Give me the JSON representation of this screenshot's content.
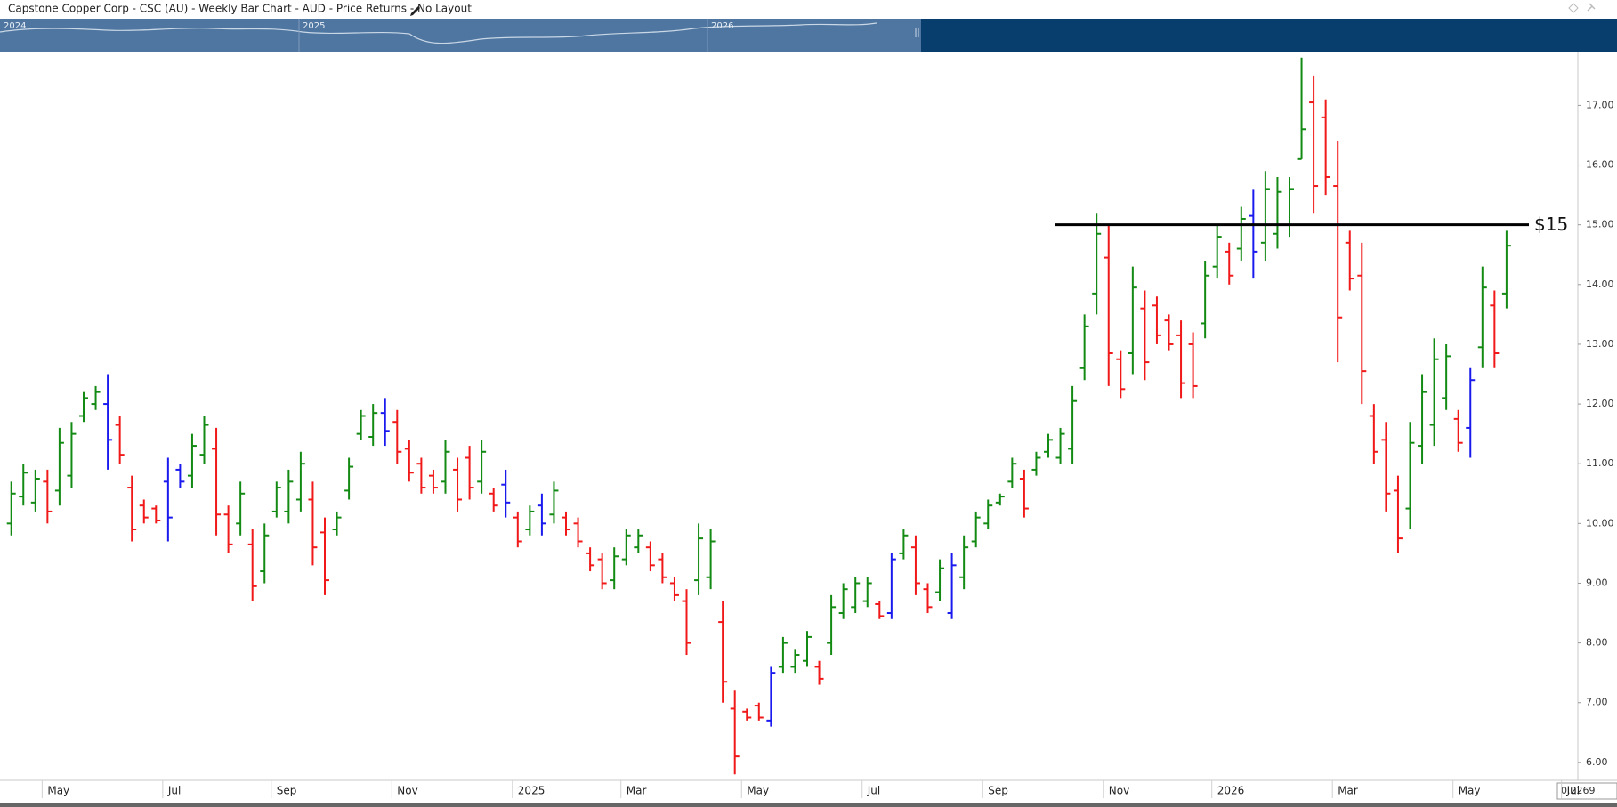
{
  "chart_data": {
    "type": "ohlc",
    "title": "Capstone Copper Corp - CSC (AU) - Weekly Bar Chart - AUD - Price Returns - No Layout",
    "navigator_labels": [
      "2024",
      "2025",
      "2026"
    ],
    "corner_label": "0.2269",
    "ylim": [
      5.7,
      17.9
    ],
    "yticks": [
      {
        "value": 6,
        "label": "6.00"
      },
      {
        "value": 7,
        "label": "7.00"
      },
      {
        "value": 8,
        "label": "8.00"
      },
      {
        "value": 9,
        "label": "9.00"
      },
      {
        "value": 10,
        "label": "10.00"
      },
      {
        "value": 11,
        "label": "11.00"
      },
      {
        "value": 12,
        "label": "12.00"
      },
      {
        "value": 13,
        "label": "13.00"
      },
      {
        "value": 14,
        "label": "14.00"
      },
      {
        "value": 15,
        "label": "15.00"
      },
      {
        "value": 16,
        "label": "16.00"
      },
      {
        "value": 17,
        "label": "17.00"
      }
    ],
    "categories": [
      null,
      null,
      null,
      "May",
      null,
      null,
      null,
      null,
      null,
      null,
      null,
      null,
      null,
      "Jul",
      null,
      null,
      null,
      null,
      null,
      null,
      null,
      null,
      "Sep",
      null,
      null,
      null,
      null,
      null,
      null,
      null,
      null,
      null,
      "Nov",
      null,
      null,
      null,
      null,
      null,
      null,
      null,
      null,
      null,
      "2025",
      null,
      null,
      null,
      null,
      null,
      null,
      null,
      null,
      "Mar",
      null,
      null,
      null,
      null,
      null,
      null,
      null,
      null,
      null,
      "May",
      null,
      null,
      null,
      null,
      null,
      null,
      null,
      null,
      null,
      "Jul",
      null,
      null,
      null,
      null,
      null,
      null,
      null,
      null,
      null,
      "Sep",
      null,
      null,
      null,
      null,
      null,
      null,
      null,
      null,
      null,
      "Nov",
      null,
      null,
      null,
      null,
      null,
      null,
      null,
      null,
      "2026",
      null,
      null,
      null,
      null,
      null,
      null,
      null,
      null,
      null,
      "Mar",
      null,
      null,
      null,
      null,
      null,
      null,
      null,
      null,
      null,
      "May",
      null,
      null,
      null,
      null,
      null,
      null,
      null,
      null,
      "Jul"
    ],
    "bars": [
      {
        "open": 10.0,
        "high": 10.7,
        "low": 9.8,
        "close": 10.5,
        "color": "#138a13"
      },
      {
        "open": 10.45,
        "high": 11.0,
        "low": 10.3,
        "close": 10.85,
        "color": "#138a13"
      },
      {
        "open": 10.35,
        "high": 10.9,
        "low": 10.2,
        "close": 10.75,
        "color": "#138a13"
      },
      {
        "open": 10.7,
        "high": 10.9,
        "low": 10.0,
        "close": 10.2,
        "color": "#f01818"
      },
      {
        "open": 10.55,
        "high": 11.6,
        "low": 10.3,
        "close": 11.35,
        "color": "#138a13"
      },
      {
        "open": 10.8,
        "high": 11.7,
        "low": 10.6,
        "close": 11.5,
        "color": "#138a13"
      },
      {
        "open": 11.8,
        "high": 12.2,
        "low": 11.7,
        "close": 12.1,
        "color": "#138a13"
      },
      {
        "open": 12.0,
        "high": 12.3,
        "low": 11.9,
        "close": 12.2,
        "color": "#138a13"
      },
      {
        "open": 12.0,
        "high": 12.5,
        "low": 10.9,
        "close": 11.4,
        "color": "#1a1aee"
      },
      {
        "open": 11.65,
        "high": 11.8,
        "low": 11.0,
        "close": 11.15,
        "color": "#f01818"
      },
      {
        "open": 10.6,
        "high": 10.8,
        "low": 9.7,
        "close": 9.9,
        "color": "#f01818"
      },
      {
        "open": 10.3,
        "high": 10.4,
        "low": 10.0,
        "close": 10.1,
        "color": "#f01818"
      },
      {
        "open": 10.25,
        "high": 10.3,
        "low": 10.0,
        "close": 10.05,
        "color": "#f01818"
      },
      {
        "open": 10.7,
        "high": 11.1,
        "low": 9.7,
        "close": 10.1,
        "color": "#1a1aee"
      },
      {
        "open": 10.9,
        "high": 11.0,
        "low": 10.6,
        "close": 10.7,
        "color": "#1a1aee"
      },
      {
        "open": 10.8,
        "high": 11.5,
        "low": 10.6,
        "close": 11.3,
        "color": "#138a13"
      },
      {
        "open": 11.15,
        "high": 11.8,
        "low": 11.0,
        "close": 11.65,
        "color": "#138a13"
      },
      {
        "open": 11.25,
        "high": 11.6,
        "low": 9.8,
        "close": 10.15,
        "color": "#f01818"
      },
      {
        "open": 10.15,
        "high": 10.3,
        "low": 9.5,
        "close": 9.65,
        "color": "#f01818"
      },
      {
        "open": 10.0,
        "high": 10.7,
        "low": 9.8,
        "close": 10.5,
        "color": "#138a13"
      },
      {
        "open": 9.65,
        "high": 9.9,
        "low": 8.7,
        "close": 8.95,
        "color": "#f01818"
      },
      {
        "open": 9.2,
        "high": 10.0,
        "low": 9.0,
        "close": 9.8,
        "color": "#138a13"
      },
      {
        "open": 10.2,
        "high": 10.7,
        "low": 10.1,
        "close": 10.6,
        "color": "#138a13"
      },
      {
        "open": 10.2,
        "high": 10.9,
        "low": 10.0,
        "close": 10.7,
        "color": "#138a13"
      },
      {
        "open": 10.4,
        "high": 11.2,
        "low": 10.2,
        "close": 11.0,
        "color": "#138a13"
      },
      {
        "open": 10.4,
        "high": 10.7,
        "low": 9.3,
        "close": 9.6,
        "color": "#f01818"
      },
      {
        "open": 9.85,
        "high": 10.1,
        "low": 8.8,
        "close": 9.05,
        "color": "#f01818"
      },
      {
        "open": 9.9,
        "high": 10.2,
        "low": 9.8,
        "close": 10.1,
        "color": "#138a13"
      },
      {
        "open": 10.55,
        "high": 11.1,
        "low": 10.4,
        "close": 10.95,
        "color": "#138a13"
      },
      {
        "open": 11.5,
        "high": 11.9,
        "low": 11.4,
        "close": 11.8,
        "color": "#138a13"
      },
      {
        "open": 11.45,
        "high": 12.0,
        "low": 11.3,
        "close": 11.85,
        "color": "#138a13"
      },
      {
        "open": 11.85,
        "high": 12.1,
        "low": 11.3,
        "close": 11.55,
        "color": "#1a1aee"
      },
      {
        "open": 11.7,
        "high": 11.9,
        "low": 11.0,
        "close": 11.2,
        "color": "#f01818"
      },
      {
        "open": 11.25,
        "high": 11.4,
        "low": 10.7,
        "close": 10.85,
        "color": "#f01818"
      },
      {
        "open": 11.0,
        "high": 11.1,
        "low": 10.5,
        "close": 10.6,
        "color": "#f01818"
      },
      {
        "open": 10.8,
        "high": 10.9,
        "low": 10.5,
        "close": 10.6,
        "color": "#f01818"
      },
      {
        "open": 10.7,
        "high": 11.4,
        "low": 10.5,
        "close": 11.2,
        "color": "#138a13"
      },
      {
        "open": 10.9,
        "high": 11.1,
        "low": 10.2,
        "close": 10.4,
        "color": "#f01818"
      },
      {
        "open": 11.1,
        "high": 11.3,
        "low": 10.4,
        "close": 10.6,
        "color": "#f01818"
      },
      {
        "open": 10.7,
        "high": 11.4,
        "low": 10.5,
        "close": 11.2,
        "color": "#138a13"
      },
      {
        "open": 10.5,
        "high": 10.6,
        "low": 10.2,
        "close": 10.3,
        "color": "#f01818"
      },
      {
        "open": 10.65,
        "high": 10.9,
        "low": 10.1,
        "close": 10.35,
        "color": "#1a1aee"
      },
      {
        "open": 10.1,
        "high": 10.2,
        "low": 9.6,
        "close": 9.7,
        "color": "#f01818"
      },
      {
        "open": 9.9,
        "high": 10.3,
        "low": 9.8,
        "close": 10.2,
        "color": "#138a13"
      },
      {
        "open": 10.3,
        "high": 10.5,
        "low": 9.8,
        "close": 10.0,
        "color": "#1a1aee"
      },
      {
        "open": 10.15,
        "high": 10.7,
        "low": 10.0,
        "close": 10.55,
        "color": "#138a13"
      },
      {
        "open": 10.1,
        "high": 10.2,
        "low": 9.8,
        "close": 9.9,
        "color": "#f01818"
      },
      {
        "open": 10.0,
        "high": 10.1,
        "low": 9.6,
        "close": 9.7,
        "color": "#f01818"
      },
      {
        "open": 9.5,
        "high": 9.6,
        "low": 9.2,
        "close": 9.3,
        "color": "#f01818"
      },
      {
        "open": 9.4,
        "high": 9.5,
        "low": 8.9,
        "close": 9.0,
        "color": "#f01818"
      },
      {
        "open": 9.05,
        "high": 9.6,
        "low": 8.9,
        "close": 9.45,
        "color": "#138a13"
      },
      {
        "open": 9.4,
        "high": 9.9,
        "low": 9.3,
        "close": 9.8,
        "color": "#138a13"
      },
      {
        "open": 9.6,
        "high": 9.9,
        "low": 9.5,
        "close": 9.8,
        "color": "#138a13"
      },
      {
        "open": 9.6,
        "high": 9.7,
        "low": 9.2,
        "close": 9.3,
        "color": "#f01818"
      },
      {
        "open": 9.4,
        "high": 9.5,
        "low": 9.0,
        "close": 9.1,
        "color": "#f01818"
      },
      {
        "open": 9.0,
        "high": 9.1,
        "low": 8.7,
        "close": 8.8,
        "color": "#f01818"
      },
      {
        "open": 8.7,
        "high": 8.9,
        "low": 7.8,
        "close": 8.0,
        "color": "#f01818"
      },
      {
        "open": 9.05,
        "high": 10.0,
        "low": 8.8,
        "close": 9.75,
        "color": "#138a13"
      },
      {
        "open": 9.1,
        "high": 9.9,
        "low": 8.9,
        "close": 9.7,
        "color": "#138a13"
      },
      {
        "open": 8.35,
        "high": 8.7,
        "low": 7.0,
        "close": 7.35,
        "color": "#f01818"
      },
      {
        "open": 6.9,
        "high": 7.2,
        "low": 5.8,
        "close": 6.1,
        "color": "#f01818"
      },
      {
        "open": 6.85,
        "high": 6.9,
        "low": 6.7,
        "close": 6.75,
        "color": "#f01818"
      },
      {
        "open": 6.95,
        "high": 7.0,
        "low": 6.7,
        "close": 6.75,
        "color": "#f01818"
      },
      {
        "open": 6.7,
        "high": 7.6,
        "low": 6.6,
        "close": 7.5,
        "color": "#1a1aee"
      },
      {
        "open": 7.6,
        "high": 8.1,
        "low": 7.5,
        "close": 8.0,
        "color": "#138a13"
      },
      {
        "open": 7.6,
        "high": 7.9,
        "low": 7.5,
        "close": 7.8,
        "color": "#138a13"
      },
      {
        "open": 7.7,
        "high": 8.2,
        "low": 7.6,
        "close": 8.1,
        "color": "#138a13"
      },
      {
        "open": 7.6,
        "high": 7.7,
        "low": 7.3,
        "close": 7.4,
        "color": "#f01818"
      },
      {
        "open": 8.0,
        "high": 8.8,
        "low": 7.8,
        "close": 8.6,
        "color": "#138a13"
      },
      {
        "open": 8.5,
        "high": 9.0,
        "low": 8.4,
        "close": 8.9,
        "color": "#138a13"
      },
      {
        "open": 8.6,
        "high": 9.1,
        "low": 8.5,
        "close": 9.0,
        "color": "#138a13"
      },
      {
        "open": 8.7,
        "high": 9.1,
        "low": 8.6,
        "close": 9.0,
        "color": "#138a13"
      },
      {
        "open": 8.65,
        "high": 8.7,
        "low": 8.4,
        "close": 8.45,
        "color": "#f01818"
      },
      {
        "open": 8.5,
        "high": 9.5,
        "low": 8.4,
        "close": 9.4,
        "color": "#1a1aee"
      },
      {
        "open": 9.5,
        "high": 9.9,
        "low": 9.4,
        "close": 9.8,
        "color": "#138a13"
      },
      {
        "open": 9.6,
        "high": 9.8,
        "low": 8.8,
        "close": 9.0,
        "color": "#f01818"
      },
      {
        "open": 8.9,
        "high": 9.0,
        "low": 8.5,
        "close": 8.6,
        "color": "#f01818"
      },
      {
        "open": 8.85,
        "high": 9.4,
        "low": 8.7,
        "close": 9.25,
        "color": "#138a13"
      },
      {
        "open": 8.5,
        "high": 9.5,
        "low": 8.4,
        "close": 9.3,
        "color": "#1a1aee"
      },
      {
        "open": 9.1,
        "high": 9.8,
        "low": 8.9,
        "close": 9.6,
        "color": "#138a13"
      },
      {
        "open": 9.7,
        "high": 10.2,
        "low": 9.6,
        "close": 10.1,
        "color": "#138a13"
      },
      {
        "open": 10.0,
        "high": 10.4,
        "low": 9.9,
        "close": 10.3,
        "color": "#138a13"
      },
      {
        "open": 10.35,
        "high": 10.5,
        "low": 10.3,
        "close": 10.45,
        "color": "#138a13"
      },
      {
        "open": 10.7,
        "high": 11.1,
        "low": 10.6,
        "close": 11.0,
        "color": "#138a13"
      },
      {
        "open": 10.75,
        "high": 10.9,
        "low": 10.1,
        "close": 10.25,
        "color": "#f01818"
      },
      {
        "open": 10.9,
        "high": 11.2,
        "low": 10.8,
        "close": 11.1,
        "color": "#138a13"
      },
      {
        "open": 11.2,
        "high": 11.5,
        "low": 11.1,
        "close": 11.4,
        "color": "#138a13"
      },
      {
        "open": 11.1,
        "high": 11.6,
        "low": 11.0,
        "close": 11.5,
        "color": "#138a13"
      },
      {
        "open": 11.25,
        "high": 12.3,
        "low": 11.0,
        "close": 12.05,
        "color": "#138a13"
      },
      {
        "open": 12.6,
        "high": 13.5,
        "low": 12.4,
        "close": 13.3,
        "color": "#138a13"
      },
      {
        "open": 13.85,
        "high": 15.2,
        "low": 13.5,
        "close": 14.85,
        "color": "#138a13"
      },
      {
        "open": 14.45,
        "high": 15.0,
        "low": 12.3,
        "close": 12.85,
        "color": "#f01818"
      },
      {
        "open": 12.75,
        "high": 12.9,
        "low": 12.1,
        "close": 12.25,
        "color": "#f01818"
      },
      {
        "open": 12.85,
        "high": 14.3,
        "low": 12.5,
        "close": 13.95,
        "color": "#138a13"
      },
      {
        "open": 13.6,
        "high": 13.9,
        "low": 12.4,
        "close": 12.7,
        "color": "#f01818"
      },
      {
        "open": 13.65,
        "high": 13.8,
        "low": 13.0,
        "close": 13.15,
        "color": "#f01818"
      },
      {
        "open": 13.4,
        "high": 13.5,
        "low": 12.9,
        "close": 13.0,
        "color": "#f01818"
      },
      {
        "open": 13.15,
        "high": 13.4,
        "low": 12.1,
        "close": 12.35,
        "color": "#f01818"
      },
      {
        "open": 13.0,
        "high": 13.2,
        "low": 12.1,
        "close": 12.3,
        "color": "#f01818"
      },
      {
        "open": 13.35,
        "high": 14.4,
        "low": 13.1,
        "close": 14.15,
        "color": "#138a13"
      },
      {
        "open": 14.3,
        "high": 15.0,
        "low": 14.1,
        "close": 14.8,
        "color": "#138a13"
      },
      {
        "open": 14.55,
        "high": 14.7,
        "low": 14.0,
        "close": 14.15,
        "color": "#f01818"
      },
      {
        "open": 14.6,
        "high": 15.3,
        "low": 14.4,
        "close": 15.1,
        "color": "#138a13"
      },
      {
        "open": 15.15,
        "high": 15.6,
        "low": 14.1,
        "close": 14.55,
        "color": "#1a1aee"
      },
      {
        "open": 14.7,
        "high": 15.9,
        "low": 14.4,
        "close": 15.6,
        "color": "#138a13"
      },
      {
        "open": 14.85,
        "high": 15.8,
        "low": 14.6,
        "close": 15.55,
        "color": "#138a13"
      },
      {
        "open": 15.0,
        "high": 15.8,
        "low": 14.8,
        "close": 15.6,
        "color": "#138a13"
      },
      {
        "open": 16.1,
        "high": 17.8,
        "low": 16.1,
        "close": 16.6,
        "color": "#138a13"
      },
      {
        "open": 17.05,
        "high": 17.5,
        "low": 15.2,
        "close": 15.65,
        "color": "#f01818"
      },
      {
        "open": 16.8,
        "high": 17.1,
        "low": 15.5,
        "close": 15.8,
        "color": "#f01818"
      },
      {
        "open": 15.65,
        "high": 16.4,
        "low": 12.7,
        "close": 13.45,
        "color": "#f01818"
      },
      {
        "open": 14.7,
        "high": 14.9,
        "low": 13.9,
        "close": 14.1,
        "color": "#f01818"
      },
      {
        "open": 14.15,
        "high": 14.7,
        "low": 12.0,
        "close": 12.55,
        "color": "#f01818"
      },
      {
        "open": 11.8,
        "high": 12.0,
        "low": 11.0,
        "close": 11.2,
        "color": "#f01818"
      },
      {
        "open": 11.4,
        "high": 11.7,
        "low": 10.2,
        "close": 10.5,
        "color": "#f01818"
      },
      {
        "open": 10.55,
        "high": 10.8,
        "low": 9.5,
        "close": 9.75,
        "color": "#f01818"
      },
      {
        "open": 10.25,
        "high": 11.7,
        "low": 9.9,
        "close": 11.35,
        "color": "#138a13"
      },
      {
        "open": 11.3,
        "high": 12.5,
        "low": 11.0,
        "close": 12.2,
        "color": "#138a13"
      },
      {
        "open": 11.65,
        "high": 13.1,
        "low": 11.3,
        "close": 12.75,
        "color": "#138a13"
      },
      {
        "open": 12.1,
        "high": 13.0,
        "low": 11.9,
        "close": 12.8,
        "color": "#138a13"
      },
      {
        "open": 11.75,
        "high": 11.9,
        "low": 11.2,
        "close": 11.35,
        "color": "#f01818"
      },
      {
        "open": 11.6,
        "high": 12.6,
        "low": 11.1,
        "close": 12.4,
        "color": "#1a1aee"
      },
      {
        "open": 12.95,
        "high": 14.3,
        "low": 12.6,
        "close": 13.95,
        "color": "#138a13"
      },
      {
        "open": 13.65,
        "high": 13.9,
        "low": 12.6,
        "close": 12.85,
        "color": "#f01818"
      },
      {
        "open": 13.85,
        "high": 14.9,
        "low": 13.6,
        "close": 14.65,
        "color": "#138a13"
      },
      null,
      null,
      null,
      null,
      null
    ],
    "annotations": [
      {
        "text": "$15",
        "value": 15,
        "from": 87,
        "to": 126,
        "color": "#000000"
      }
    ]
  }
}
